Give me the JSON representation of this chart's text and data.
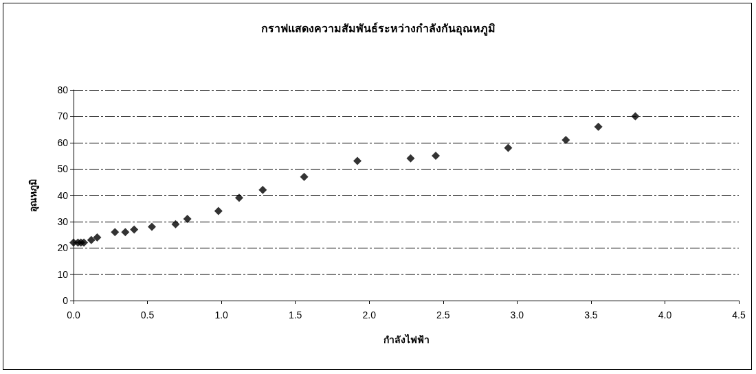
{
  "chart_data": {
    "type": "scatter",
    "title": "กราฟแสดงความสัมพันธ์ระหว่างกำลังกันอุณหภูมิ",
    "xlabel": "กำลังไฟฟ้า",
    "ylabel": "อุณหภูมิ",
    "x": [
      0.0,
      0.03,
      0.05,
      0.07,
      0.12,
      0.16,
      0.28,
      0.35,
      0.41,
      0.53,
      0.69,
      0.77,
      0.98,
      1.12,
      1.28,
      1.56,
      1.92,
      2.28,
      2.45,
      2.94,
      3.33,
      3.55,
      3.8
    ],
    "values": [
      22,
      22,
      22,
      22,
      23,
      24,
      26,
      26,
      27,
      28,
      29,
      31,
      34,
      39,
      42,
      47,
      53,
      54,
      55,
      58,
      61,
      66,
      70
    ],
    "color": "#000000",
    "marker": "diamond",
    "grid": "y",
    "xlim": [
      0,
      4.5
    ],
    "xticks": [
      {
        "value": 0,
        "label": "0.0"
      },
      0.5,
      {
        "value": 1,
        "label": "1.0"
      },
      1.5,
      {
        "value": 2,
        "label": "2.0"
      },
      2.5,
      {
        "value": 3,
        "label": "3.0"
      },
      3.5,
      {
        "value": 4,
        "label": "4.0"
      },
      4.5
    ],
    "ylim": [
      0,
      80
    ],
    "yticks": [
      0,
      10,
      20,
      30,
      40,
      50,
      60,
      70,
      80
    ]
  }
}
